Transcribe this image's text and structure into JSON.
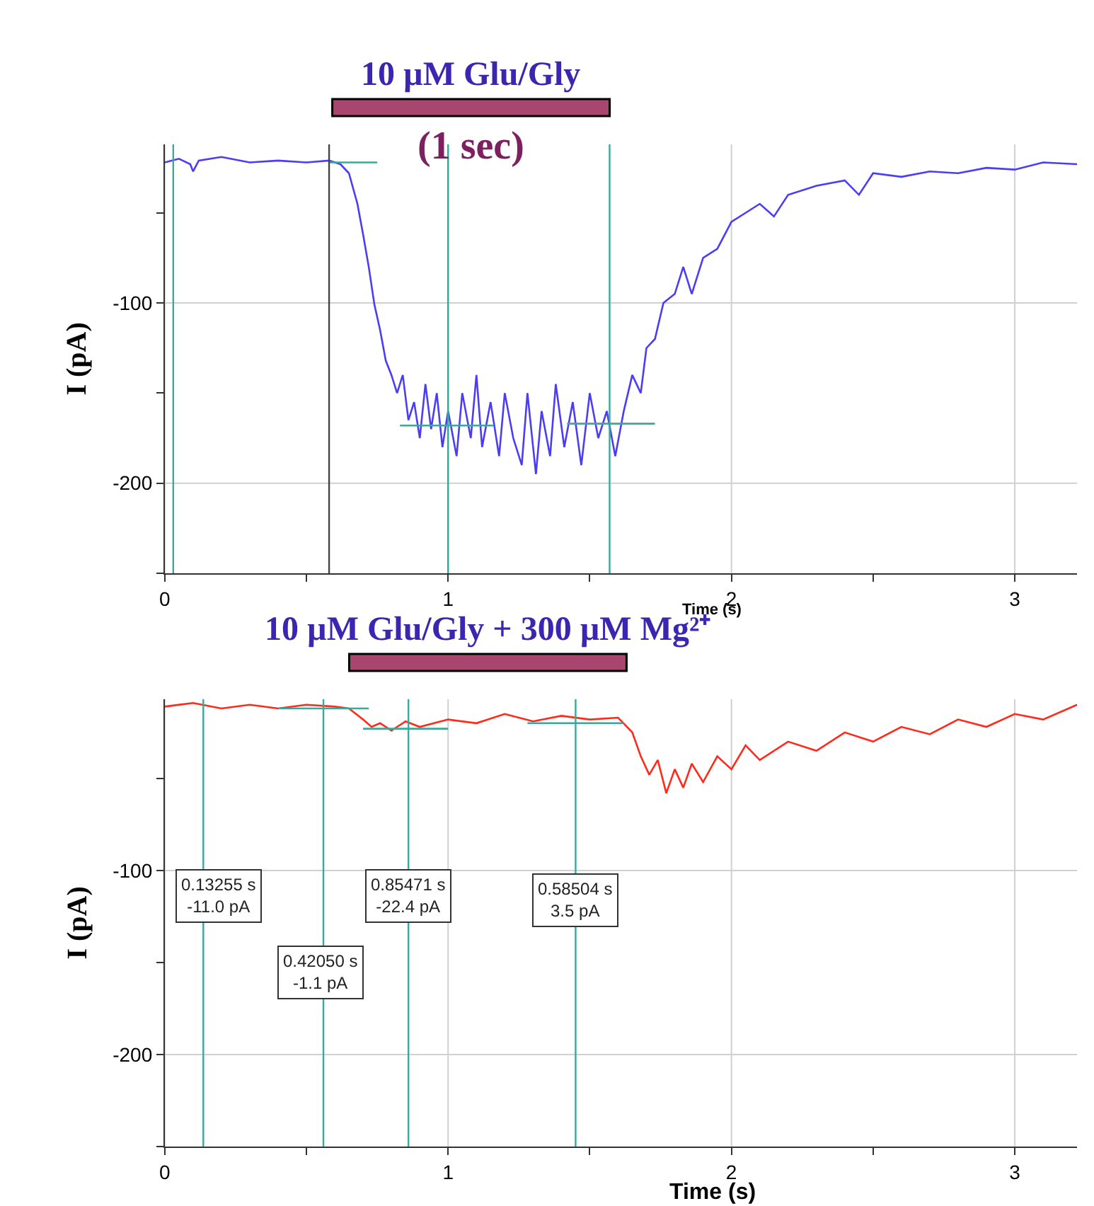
{
  "chart_data": [
    {
      "type": "line",
      "title": "10 µM Glu/Gly",
      "xlabel": "Time (s)",
      "ylabel": "I (pA)",
      "xlim": [
        0,
        3.22
      ],
      "ylim": [
        -250,
        -12
      ],
      "xticks": [
        0,
        {
          "value": 0.5,
          "label": null
        },
        1,
        {
          "value": 1.5,
          "label": null
        },
        2,
        {
          "value": 2.5,
          "label": null
        },
        3
      ],
      "yticks": [
        {
          "value": -50,
          "label": null
        },
        -100,
        {
          "value": -150,
          "label": null
        },
        -200,
        {
          "value": -250,
          "label": null
        }
      ],
      "grid": true,
      "marker": "none",
      "line_style": "solid",
      "series": [
        {
          "color": "#4b3cf5",
          "x": [
            0,
            0.05,
            0.09,
            0.1,
            0.12,
            0.2,
            0.3,
            0.4,
            0.5,
            0.58,
            0.62,
            0.65,
            0.68,
            0.7,
            0.72,
            0.74,
            0.76,
            0.78,
            0.8,
            0.82,
            0.84,
            0.86,
            0.88,
            0.9,
            0.92,
            0.94,
            0.96,
            0.98,
            1.0,
            1.03,
            1.05,
            1.08,
            1.1,
            1.12,
            1.15,
            1.18,
            1.2,
            1.23,
            1.26,
            1.28,
            1.31,
            1.33,
            1.36,
            1.38,
            1.41,
            1.44,
            1.47,
            1.5,
            1.53,
            1.56,
            1.59,
            1.62,
            1.65,
            1.68,
            1.7,
            1.73,
            1.76,
            1.8,
            1.83,
            1.86,
            1.9,
            1.95,
            2.0,
            2.05,
            2.1,
            2.15,
            2.2,
            2.3,
            2.4,
            2.45,
            2.5,
            2.6,
            2.7,
            2.8,
            2.9,
            3.0,
            3.1,
            3.22
          ],
          "values": [
            -22,
            -20,
            -23,
            -27,
            -21,
            -19,
            -22,
            -21,
            -22,
            -21,
            -23,
            -28,
            -45,
            -62,
            -80,
            -101,
            -115,
            -132,
            -140,
            -150,
            -140,
            -165,
            -155,
            -175,
            -145,
            -170,
            -150,
            -180,
            -160,
            -185,
            -150,
            -175,
            -140,
            -180,
            -155,
            -185,
            -150,
            -175,
            -190,
            -150,
            -195,
            -160,
            -185,
            -145,
            -180,
            -155,
            -190,
            -150,
            -175,
            -160,
            -185,
            -160,
            -140,
            -150,
            -125,
            -120,
            -100,
            -95,
            -80,
            -95,
            -75,
            -70,
            -55,
            -50,
            -45,
            -52,
            -40,
            -35,
            -32,
            -40,
            -28,
            -30,
            -27,
            -28,
            -25,
            -26,
            -22,
            -23
          ]
        },
        {
          "color": "#3aa89a",
          "x": [
            0.58,
            0.75
          ],
          "values": [
            -22,
            -22
          ]
        },
        {
          "color": "#3aa89a",
          "x": [
            0.83,
            1.16
          ],
          "values": [
            -168,
            -168
          ]
        },
        {
          "color": "#3aa89a",
          "x": [
            1.42,
            1.73
          ],
          "values": [
            -167,
            -167
          ]
        }
      ],
      "ref_lines": [
        {
          "axis": "x",
          "value": 0.03,
          "color": "#3aa89a"
        },
        {
          "axis": "x",
          "value": 0.58,
          "color": "#444444"
        },
        {
          "axis": "x",
          "value": 1.0,
          "color": "#3aa89a"
        },
        {
          "axis": "x",
          "value": 1.57,
          "color": "#3aa89a"
        }
      ],
      "annotations": [
        "(1 sec)"
      ]
    },
    {
      "type": "line",
      "title": "10 µM Glu/Gly + 300 µM Mg²⁺",
      "xlabel": "Time (s)",
      "ylabel": "I (pA)",
      "xlim": [
        0,
        3.22
      ],
      "ylim": [
        -250,
        -7
      ],
      "xticks": [
        0,
        {
          "value": 0.5,
          "label": null
        },
        1,
        {
          "value": 1.5,
          "label": null
        },
        2,
        {
          "value": 2.5,
          "label": null
        },
        3
      ],
      "yticks": [
        {
          "value": -50,
          "label": null
        },
        -100,
        {
          "value": -150,
          "label": null
        },
        -200,
        {
          "value": -250,
          "label": null
        }
      ],
      "grid": true,
      "marker": "none",
      "line_style": "solid",
      "series": [
        {
          "color": "#ff2a1a",
          "x": [
            0,
            0.1,
            0.2,
            0.3,
            0.4,
            0.5,
            0.6,
            0.65,
            0.7,
            0.73,
            0.76,
            0.8,
            0.85,
            0.9,
            1.0,
            1.1,
            1.2,
            1.3,
            1.4,
            1.5,
            1.6,
            1.65,
            1.68,
            1.71,
            1.74,
            1.77,
            1.8,
            1.83,
            1.86,
            1.9,
            1.95,
            2.0,
            2.05,
            2.1,
            2.2,
            2.3,
            2.4,
            2.5,
            2.6,
            2.7,
            2.8,
            2.9,
            3.0,
            3.1,
            3.22
          ],
          "values": [
            -11,
            -9,
            -12,
            -10,
            -12,
            -10,
            -11,
            -12,
            -18,
            -22,
            -20,
            -24,
            -19,
            -22,
            -18,
            -20,
            -15,
            -19,
            -16,
            -18,
            -17,
            -25,
            -38,
            -48,
            -40,
            -58,
            -45,
            -55,
            -42,
            -52,
            -38,
            -45,
            -32,
            -40,
            -30,
            -35,
            -25,
            -30,
            -22,
            -26,
            -18,
            -22,
            -15,
            -18,
            -10
          ]
        },
        {
          "color": "#3aa89a",
          "x": [
            0.4,
            0.72
          ],
          "values": [
            -12,
            -12
          ]
        },
        {
          "color": "#3aa89a",
          "x": [
            0.7,
            1.0
          ],
          "values": [
            -23,
            -23
          ]
        },
        {
          "color": "#3aa89a",
          "x": [
            1.28,
            1.62
          ],
          "values": [
            -20,
            -20
          ]
        }
      ],
      "ref_lines": [
        {
          "axis": "x",
          "value": 0.136,
          "color": "#3aa89a"
        },
        {
          "axis": "x",
          "value": 0.56,
          "color": "#3aa89a"
        },
        {
          "axis": "x",
          "value": 0.86,
          "color": "#3aa89a"
        },
        {
          "axis": "x",
          "value": 1.45,
          "color": "#3aa89a"
        }
      ],
      "annotations": [
        "0.13255 s\n-11.0 pA",
        "0.42050 s\n-1.1 pA",
        "0.85471 s\n-22.4 pA",
        "0.58504 s\n3.5 pA"
      ]
    }
  ]
}
